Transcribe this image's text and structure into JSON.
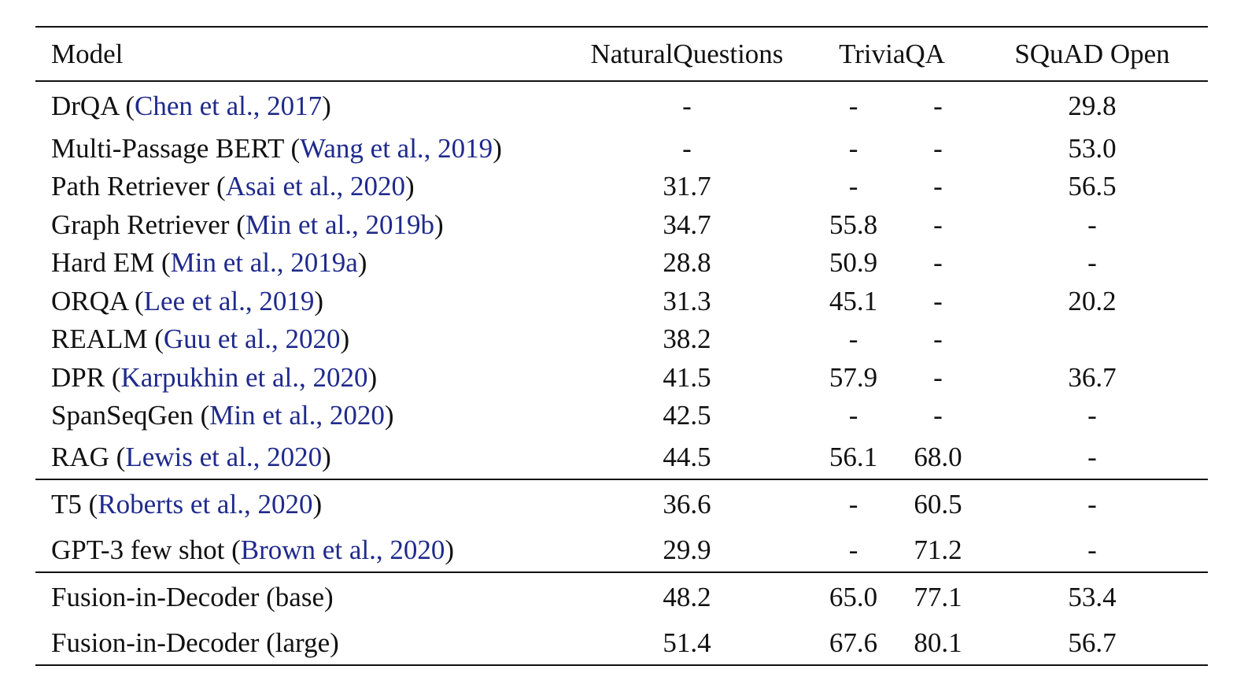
{
  "table": {
    "headers": {
      "model": "Model",
      "natural_questions": "NaturalQuestions",
      "triviaqa": "TriviaQA",
      "squad_open": "SQuAD Open"
    },
    "groups": [
      {
        "rows": [
          {
            "model": "DrQA",
            "citation": "Chen et al., 2017",
            "nq": "-",
            "tqa1": "-",
            "tqa2": "-",
            "squad": "29.8"
          },
          {
            "model": "Multi-Passage BERT",
            "citation": "Wang et al., 2019",
            "nq": "-",
            "tqa1": "-",
            "tqa2": "-",
            "squad": "53.0"
          },
          {
            "model": "Path Retriever",
            "citation": "Asai et al., 2020",
            "nq": "31.7",
            "tqa1": "-",
            "tqa2": "-",
            "squad": "56.5"
          },
          {
            "model": "Graph Retriever",
            "citation": "Min et al., 2019b",
            "nq": "34.7",
            "tqa1": "55.8",
            "tqa2": "-",
            "squad": "-"
          },
          {
            "model": "Hard EM",
            "citation": "Min et al., 2019a",
            "nq": "28.8",
            "tqa1": "50.9",
            "tqa2": "-",
            "squad": "-"
          },
          {
            "model": "ORQA",
            "citation": "Lee et al., 2019",
            "nq": "31.3",
            "tqa1": "45.1",
            "tqa2": "-",
            "squad": "20.2"
          },
          {
            "model": "REALM",
            "citation": "Guu et al., 2020",
            "nq": "38.2",
            "tqa1": "-",
            "tqa2": "-",
            "squad": ""
          },
          {
            "model": "DPR",
            "citation": "Karpukhin et al., 2020",
            "nq": "41.5",
            "tqa1": "57.9",
            "tqa2": "-",
            "squad": "36.7"
          },
          {
            "model": "SpanSeqGen",
            "citation": "Min et al., 2020",
            "nq": "42.5",
            "tqa1": "-",
            "tqa2": "-",
            "squad": "-"
          },
          {
            "model": "RAG",
            "citation": "Lewis et al., 2020",
            "nq": "44.5",
            "tqa1": "56.1",
            "tqa2": "68.0",
            "squad": "-"
          }
        ]
      },
      {
        "rows": [
          {
            "model": "T5",
            "citation": "Roberts et al., 2020",
            "nq": "36.6",
            "tqa1": "-",
            "tqa2": "60.5",
            "squad": "-"
          },
          {
            "model": "GPT-3 few shot",
            "citation": "Brown et al., 2020",
            "nq": "29.9",
            "tqa1": "-",
            "tqa2": "71.2",
            "squad": "-"
          }
        ]
      },
      {
        "rows": [
          {
            "model": "Fusion-in-Decoder (base)",
            "citation": "",
            "nq": "48.2",
            "tqa1": "65.0",
            "tqa2": "77.1",
            "squad": "53.4"
          },
          {
            "model": "Fusion-in-Decoder (large)",
            "citation": "",
            "nq": "51.4",
            "tqa1": "67.6",
            "tqa2": "80.1",
            "squad": "56.7"
          }
        ]
      }
    ],
    "bold_cells": [
      "0.2.squad",
      "2.1.nq",
      "2.1.tqa1",
      "2.1.tqa2",
      "2.1.squad"
    ],
    "colors": {
      "text": "#111111",
      "citation": "#1f2a8c"
    }
  }
}
